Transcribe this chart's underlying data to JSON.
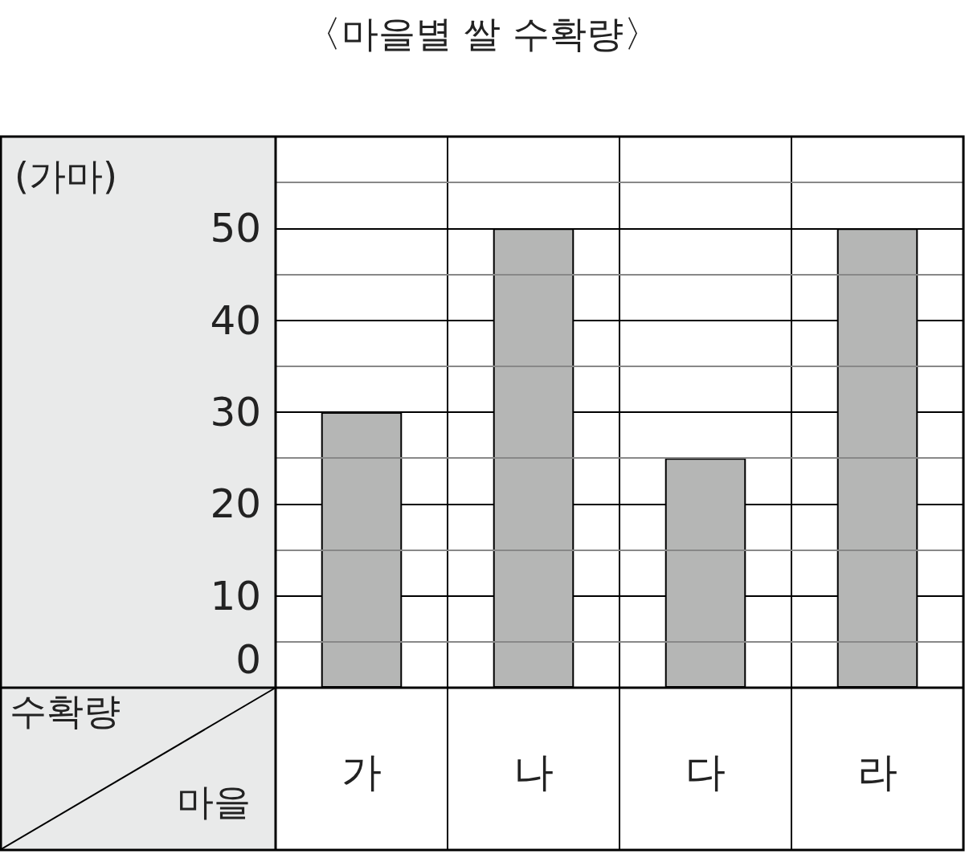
{
  "chart_data": {
    "type": "bar",
    "title": "〈마을별 쌀 수확량〉",
    "ylabel": "(가마)",
    "xlabel": "마을",
    "annotations": [
      "수확량"
    ],
    "categories": [
      "가",
      "나",
      "다",
      "라"
    ],
    "values": [
      30,
      50,
      25,
      50
    ],
    "color": "#b5b6b5",
    "ylim": [
      0,
      60
    ],
    "yticks": [
      0,
      {
        "value": 5,
        "label": null
      },
      10,
      {
        "value": 15,
        "label": null
      },
      20,
      {
        "value": 25,
        "label": null
      },
      30,
      {
        "value": 35,
        "label": null
      },
      40,
      {
        "value": 45,
        "label": null
      },
      50,
      {
        "value": 55,
        "label": null
      }
    ],
    "grid": true
  }
}
